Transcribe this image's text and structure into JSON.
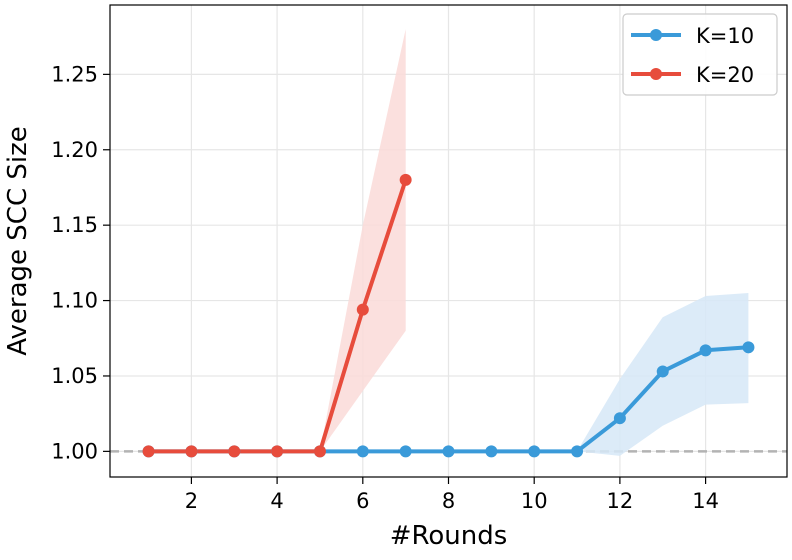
{
  "chart_data": {
    "type": "line",
    "xlabel": "#Rounds",
    "ylabel": "Average SCC Size",
    "xlim": [
      0.1,
      15.9
    ],
    "ylim": [
      0.983,
      1.296
    ],
    "xticks": [
      2,
      4,
      6,
      8,
      10,
      12,
      14
    ],
    "yticks": [
      1.0,
      1.05,
      1.1,
      1.15,
      1.2,
      1.25
    ],
    "xtick_labels": [
      "2",
      "4",
      "6",
      "8",
      "10",
      "12",
      "14"
    ],
    "ytick_labels": [
      "1.00",
      "1.05",
      "1.10",
      "1.15",
      "1.20",
      "1.25"
    ],
    "grid": true,
    "baseline": 1.0,
    "legend_position": "top-right",
    "series": [
      {
        "name": "K=10",
        "color": "#3a9ad9",
        "band_color": "#d6e8f7",
        "x": [
          1,
          2,
          3,
          4,
          5,
          6,
          7,
          8,
          9,
          10,
          11,
          12,
          13,
          14,
          15
        ],
        "y": [
          1.0,
          1.0,
          1.0,
          1.0,
          1.0,
          1.0,
          1.0,
          1.0,
          1.0,
          1.0,
          1.0,
          1.022,
          1.053,
          1.067,
          1.069
        ],
        "lower": [
          1.0,
          1.0,
          1.0,
          1.0,
          1.0,
          1.0,
          1.0,
          1.0,
          1.0,
          1.0,
          1.0,
          0.997,
          1.017,
          1.031,
          1.032
        ],
        "upper": [
          1.0,
          1.0,
          1.0,
          1.0,
          1.0,
          1.0,
          1.0,
          1.0,
          1.0,
          1.0,
          1.0,
          1.048,
          1.089,
          1.103,
          1.105
        ]
      },
      {
        "name": "K=20",
        "color": "#e74c3c",
        "band_color": "#fadbd8",
        "x": [
          1,
          2,
          3,
          4,
          5,
          6,
          7
        ],
        "y": [
          1.0,
          1.0,
          1.0,
          1.0,
          1.0,
          1.094,
          1.18
        ],
        "lower": [
          1.0,
          1.0,
          1.0,
          1.0,
          1.0,
          1.04,
          1.08
        ],
        "upper": [
          1.0,
          1.0,
          1.0,
          1.0,
          1.0,
          1.15,
          1.28
        ]
      }
    ]
  }
}
